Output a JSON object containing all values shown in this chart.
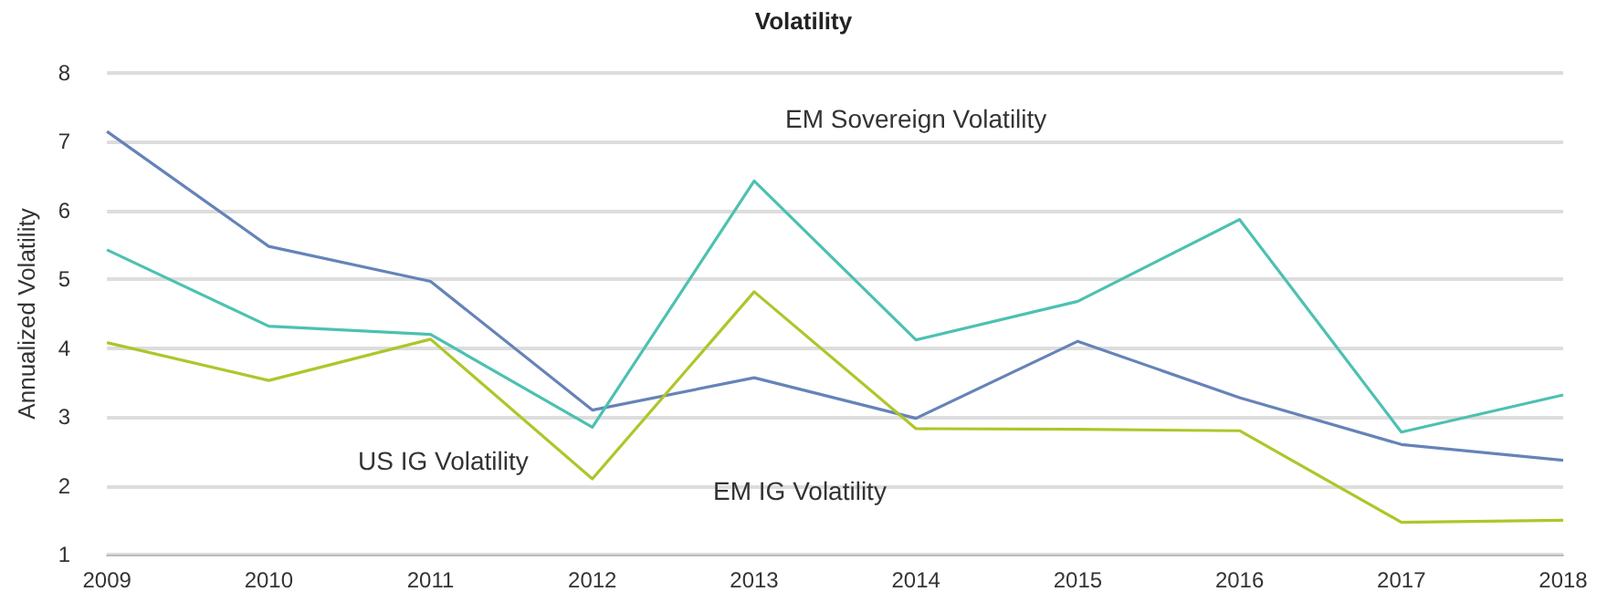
{
  "chart_data": {
    "type": "line",
    "title": "Volatility",
    "ylabel": "Annualized Volatility",
    "categories": [
      "2009",
      "2010",
      "2011",
      "2012",
      "2013",
      "2014",
      "2015",
      "2016",
      "2017",
      "2018"
    ],
    "series": [
      {
        "name": "EM IG Volatility",
        "color": "#6683b8",
        "values": [
          7.15,
          5.48,
          4.97,
          3.1,
          3.57,
          2.98,
          4.1,
          3.28,
          2.6,
          2.37
        ]
      },
      {
        "name": "EM Sovereign Volatility",
        "color": "#4cc1b1",
        "values": [
          5.43,
          4.32,
          4.2,
          2.85,
          6.43,
          4.12,
          4.68,
          5.87,
          2.78,
          3.32
        ]
      },
      {
        "name": "US IG Volatility",
        "color": "#aec62a",
        "values": [
          4.08,
          3.53,
          4.13,
          2.1,
          4.82,
          2.83,
          2.82,
          2.8,
          1.47,
          1.5
        ]
      }
    ],
    "ylim": [
      1,
      8
    ],
    "yticks": [
      1,
      2,
      3,
      4,
      5,
      6,
      7,
      8
    ],
    "grid": "y",
    "legend": false,
    "marker": "none"
  }
}
